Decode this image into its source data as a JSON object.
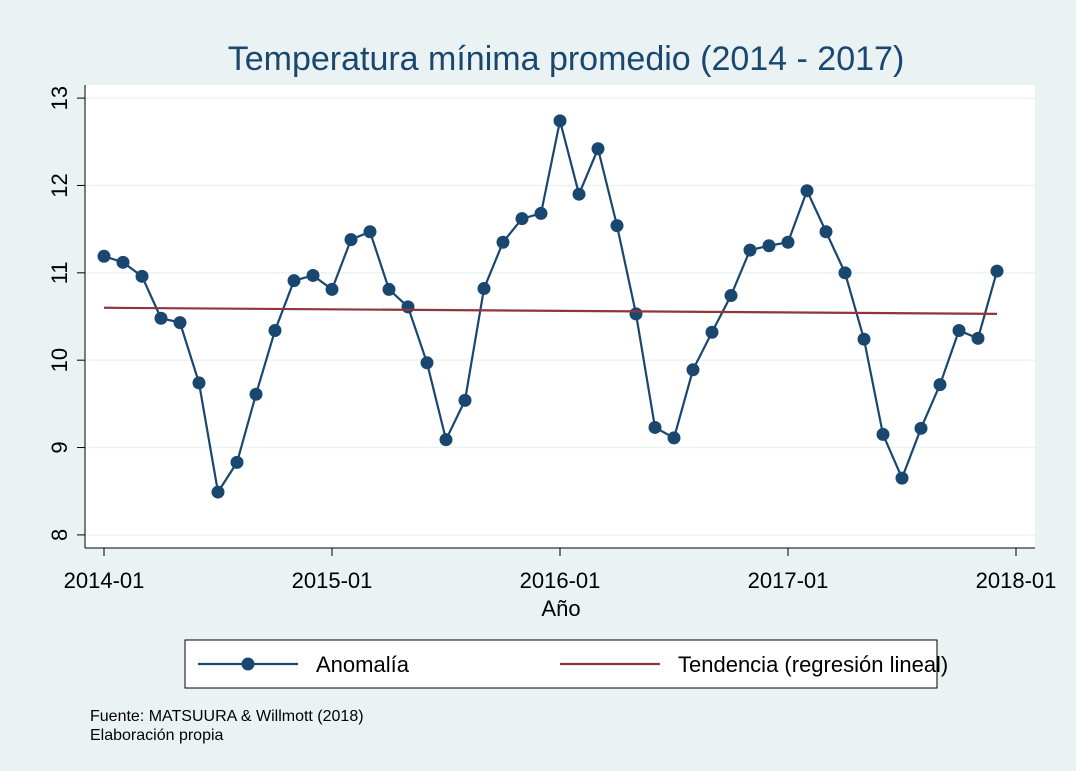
{
  "chart_data": {
    "type": "line",
    "title": "Temperatura mínima promedio (2014 - 2017)",
    "x_label": "Año",
    "x": [
      "2014-01",
      "2014-02",
      "2014-03",
      "2014-04",
      "2014-05",
      "2014-06",
      "2014-07",
      "2014-08",
      "2014-09",
      "2014-10",
      "2014-11",
      "2014-12",
      "2015-01",
      "2015-02",
      "2015-03",
      "2015-04",
      "2015-05",
      "2015-06",
      "2015-07",
      "2015-08",
      "2015-09",
      "2015-10",
      "2015-11",
      "2015-12",
      "2016-01",
      "2016-02",
      "2016-03",
      "2016-04",
      "2016-05",
      "2016-06",
      "2016-07",
      "2016-08",
      "2016-09",
      "2016-10",
      "2016-11",
      "2016-12",
      "2017-01",
      "2017-02",
      "2017-03",
      "2017-04",
      "2017-05",
      "2017-06",
      "2017-07",
      "2017-08",
      "2017-09",
      "2017-10",
      "2017-11",
      "2017-12"
    ],
    "series": [
      {
        "name": "Anomalía",
        "color": "#1a476f",
        "markers": true,
        "values": [
          11.19,
          11.12,
          10.96,
          10.48,
          10.43,
          9.74,
          8.49,
          8.83,
          9.61,
          10.34,
          10.91,
          10.97,
          10.81,
          11.38,
          11.47,
          10.81,
          10.61,
          9.97,
          9.09,
          9.54,
          10.82,
          11.35,
          11.62,
          11.68,
          12.74,
          11.9,
          12.42,
          11.54,
          10.53,
          9.23,
          9.11,
          9.89,
          10.32,
          10.74,
          11.26,
          11.31,
          11.35,
          11.94,
          11.47,
          11.0,
          10.24,
          9.15,
          8.65,
          9.22,
          9.72,
          10.34,
          10.25,
          11.02
        ]
      },
      {
        "name": "Tendencia (regresión lineal)",
        "color": "#90353b",
        "markers": false,
        "x": [
          "2014-01",
          "2017-12"
        ],
        "values": [
          10.6,
          10.53
        ]
      }
    ],
    "xlim": [
      "2013-12",
      "2018-02"
    ],
    "xticks": [
      "2014-01",
      "2015-01",
      "2016-01",
      "2017-01",
      "2018-01"
    ],
    "ylim": [
      7.85,
      13.15
    ],
    "yticks": [
      8,
      9,
      10,
      11,
      12,
      13
    ],
    "grid": true,
    "legend": "bottom",
    "notes": [
      "Fuente: MATSUURA & Willmott (2018)",
      "Elaboración propia"
    ]
  }
}
